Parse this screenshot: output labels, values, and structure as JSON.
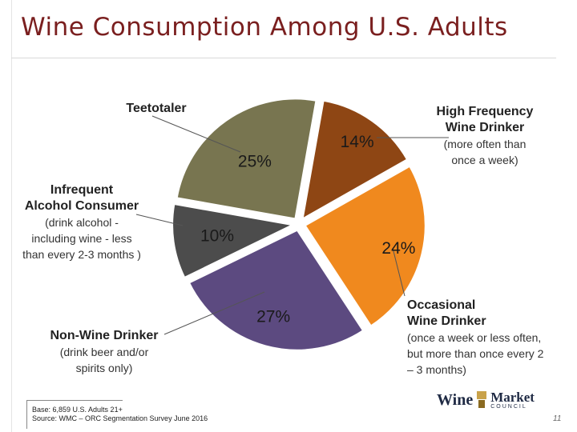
{
  "title": "Wine Consumption Among U.S. Adults",
  "chart_data": {
    "type": "pie",
    "title": "Wine Consumption Among U.S. Adults",
    "slices": [
      {
        "name": "High Frequency Wine Drinker",
        "value": 14,
        "label": "14%",
        "color": "#8e4614"
      },
      {
        "name": "Occasional Wine Drinker",
        "value": 24,
        "label": "24%",
        "color": "#f0891e"
      },
      {
        "name": "Non-Wine Drinker",
        "value": 27,
        "label": "27%",
        "color": "#5c4a80"
      },
      {
        "name": "Infrequent Alcohol Consumer",
        "value": 10,
        "label": "10%",
        "color": "#4c4c4c"
      },
      {
        "name": "Teetotaler",
        "value": 25,
        "label": "25%",
        "color": "#787550"
      }
    ]
  },
  "labels": {
    "teetotaler": {
      "head": "Teetotaler"
    },
    "high": {
      "head1": "High Frequency",
      "head2": "Wine Drinker",
      "sub1": "(more often than",
      "sub2": "once a week)"
    },
    "infrequent": {
      "head1": "Infrequent",
      "head2": "Alcohol Consumer",
      "sub1": "(drink alcohol -",
      "sub2": "including wine - less",
      "sub3": "than every 2-3 months )"
    },
    "nonwine": {
      "head": "Non-Wine Drinker",
      "sub1": "(drink beer and/or",
      "sub2": "spirits only)"
    },
    "occasional": {
      "head1": "Occasional",
      "head2": "Wine Drinker",
      "sub1": "(once a week or less often,",
      "sub2": "but more than once every 2",
      "sub3": "– 3 months)"
    }
  },
  "footnote": {
    "line1": "Base: 6,859 U.S. Adults 21+",
    "line2": "Source: WMC – ORC Segmentation Survey June 2016"
  },
  "logo": {
    "wine": "Wine",
    "market": "Market",
    "council": "COUNCIL"
  },
  "page_number": "11"
}
